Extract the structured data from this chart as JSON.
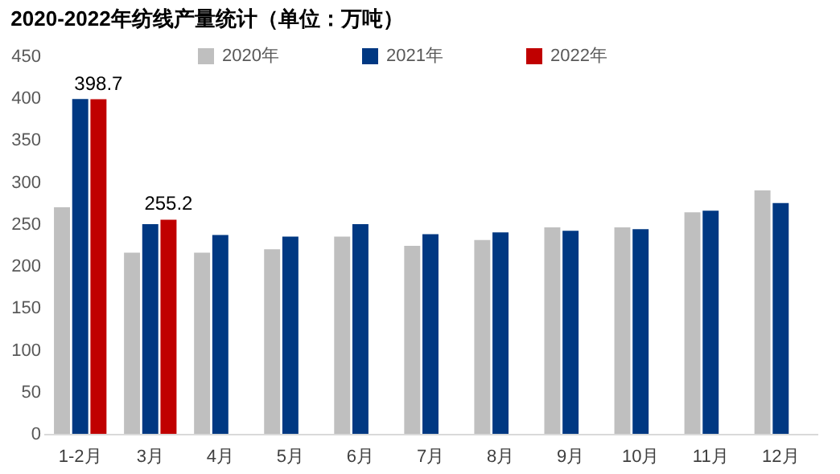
{
  "chart_data": {
    "type": "bar",
    "title": "2020-2022年纺线产量统计（单位：万吨）",
    "categories": [
      "1-2月",
      "3月",
      "4月",
      "5月",
      "6月",
      "7月",
      "8月",
      "9月",
      "10月",
      "11月",
      "12月"
    ],
    "series": [
      {
        "name": "2020年",
        "color": "#bfbfbf",
        "values": [
          270,
          216,
          216,
          220,
          235,
          224,
          231,
          246,
          246,
          264,
          290
        ]
      },
      {
        "name": "2021年",
        "color": "#003882",
        "values": [
          399,
          250,
          237,
          235,
          250,
          238,
          240,
          242,
          244,
          266,
          275
        ]
      },
      {
        "name": "2022年",
        "color": "#c00000",
        "values": [
          398.7,
          255.2,
          null,
          null,
          null,
          null,
          null,
          null,
          null,
          null,
          null
        ],
        "value_labels": [
          "398.7",
          "255.2",
          null,
          null,
          null,
          null,
          null,
          null,
          null,
          null,
          null
        ]
      }
    ],
    "ylim": [
      0,
      450
    ],
    "yticks": [
      0,
      50,
      100,
      150,
      200,
      250,
      300,
      350,
      400,
      450
    ],
    "grid": false,
    "legend": "top"
  }
}
